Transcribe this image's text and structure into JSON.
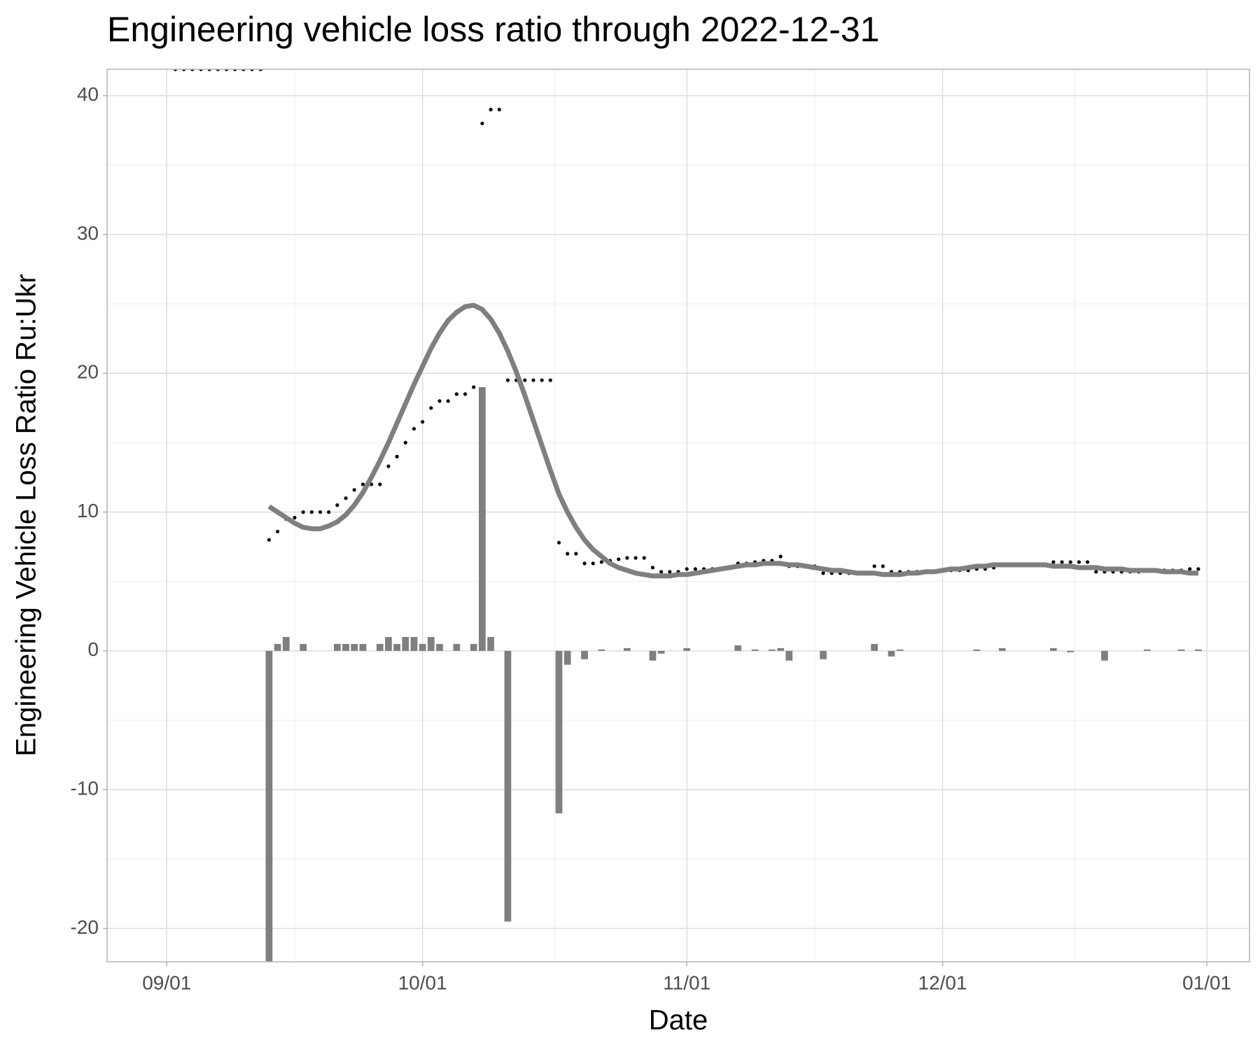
{
  "chart_data": {
    "type": "combo",
    "title": "Engineering vehicle loss ratio through 2022-12-31",
    "x_label": "Date",
    "y_label": "Engineering Vehicle Loss Ratio Ru:Ukr",
    "x": [
      "09/02",
      "09/03",
      "09/04",
      "09/05",
      "09/06",
      "09/07",
      "09/08",
      "09/09",
      "09/10",
      "09/11",
      "09/12",
      "09/13",
      "09/14",
      "09/15",
      "09/16",
      "09/17",
      "09/18",
      "09/19",
      "09/20",
      "09/21",
      "09/22",
      "09/23",
      "09/24",
      "09/25",
      "09/26",
      "09/27",
      "09/28",
      "09/29",
      "09/30",
      "10/01",
      "10/02",
      "10/03",
      "10/04",
      "10/05",
      "10/06",
      "10/07",
      "10/08",
      "10/09",
      "10/10",
      "10/11",
      "10/12",
      "10/13",
      "10/14",
      "10/15",
      "10/16",
      "10/17",
      "10/18",
      "10/19",
      "10/20",
      "10/21",
      "10/22",
      "10/23",
      "10/24",
      "10/25",
      "10/26",
      "10/27",
      "10/28",
      "10/29",
      "10/30",
      "10/31",
      "11/01",
      "11/02",
      "11/03",
      "11/04",
      "11/05",
      "11/06",
      "11/07",
      "11/08",
      "11/09",
      "11/10",
      "11/11",
      "11/12",
      "11/13",
      "11/14",
      "11/15",
      "11/16",
      "11/17",
      "11/18",
      "11/19",
      "11/20",
      "11/21",
      "11/22",
      "11/23",
      "11/24",
      "11/25",
      "11/26",
      "11/27",
      "11/28",
      "11/29",
      "11/30",
      "12/01",
      "12/02",
      "12/03",
      "12/04",
      "12/05",
      "12/06",
      "12/07",
      "12/08",
      "12/09",
      "12/10",
      "12/11",
      "12/12",
      "12/13",
      "12/14",
      "12/15",
      "12/16",
      "12/17",
      "12/18",
      "12/19",
      "12/20",
      "12/21",
      "12/22",
      "12/23",
      "12/24",
      "12/25",
      "12/26",
      "12/27",
      "12/28",
      "12/29",
      "12/30",
      "12/31"
    ],
    "series": [
      {
        "type": "bar",
        "color": "#7f7f7f",
        "values": [
          null,
          null,
          null,
          null,
          null,
          null,
          null,
          null,
          null,
          null,
          null,
          -22.4,
          0.5,
          1,
          0,
          0.5,
          0,
          0,
          0,
          0.5,
          0.5,
          0.5,
          0.5,
          0,
          0.5,
          1,
          0.5,
          1,
          1,
          0.5,
          1,
          0.5,
          0,
          0.5,
          0,
          0.5,
          19,
          1,
          0,
          -19.5,
          0,
          0,
          0,
          0,
          0,
          -11.7,
          -1,
          0,
          -0.6,
          0,
          0.1,
          0,
          0,
          0.2,
          0,
          0,
          -0.7,
          -0.2,
          0,
          0,
          0.2,
          0,
          0,
          0,
          0,
          0,
          0.4,
          0,
          0.1,
          0,
          0.1,
          0.2,
          -0.7,
          0,
          0,
          0,
          -0.6,
          0,
          0,
          0,
          0,
          0,
          0.5,
          0,
          -0.4,
          0.1,
          0,
          0,
          0,
          0,
          0,
          0,
          0,
          0,
          0.1,
          0,
          0,
          0.2,
          0,
          0,
          0,
          0,
          0,
          0.2,
          0,
          -0.1,
          0,
          0,
          0,
          -0.7,
          0,
          0,
          0,
          0,
          0.1,
          0,
          0,
          0,
          0.1,
          0,
          0.1
        ]
      },
      {
        "type": "scatter",
        "color": "#000000",
        "values": [
          41.9,
          41.9,
          41.9,
          41.9,
          41.9,
          41.9,
          41.9,
          41.9,
          41.9,
          41.9,
          41.9,
          8.0,
          8.6,
          9.5,
          9.6,
          10,
          10,
          10,
          10,
          10.5,
          11,
          11.6,
          12,
          12,
          12,
          13.3,
          14,
          15,
          16,
          16.5,
          17.5,
          18,
          18,
          18.5,
          18.5,
          19,
          38,
          39,
          39,
          19.5,
          19.5,
          19.5,
          19.5,
          19.5,
          19.5,
          7.8,
          7,
          7,
          6.3,
          6.3,
          6.4,
          6.5,
          6.6,
          6.7,
          6.7,
          6.7,
          6.0,
          5.7,
          5.7,
          5.7,
          5.9,
          5.9,
          5.9,
          5.9,
          5.9,
          6.0,
          6.3,
          6.3,
          6.4,
          6.5,
          6.5,
          6.8,
          6.1,
          6.1,
          6.1,
          6.1,
          5.6,
          5.6,
          5.6,
          5.6,
          5.6,
          5.6,
          6.1,
          6.1,
          5.7,
          5.7,
          5.7,
          5.7,
          5.7,
          5.7,
          5.8,
          5.8,
          5.8,
          5.8,
          5.9,
          5.9,
          6.0,
          6.2,
          6.2,
          6.2,
          6.2,
          6.2,
          6.2,
          6.4,
          6.4,
          6.4,
          6.4,
          6.4,
          5.7,
          5.7,
          5.7,
          5.7,
          5.7,
          5.7,
          5.8,
          5.8,
          5.8,
          5.8,
          5.8,
          5.9,
          5.9
        ]
      },
      {
        "type": "line",
        "color": "#7f7f7f",
        "values": [
          null,
          null,
          null,
          null,
          null,
          null,
          null,
          null,
          null,
          null,
          null,
          10.4,
          10.0,
          9.6,
          9.2,
          8.9,
          8.8,
          8.8,
          9.0,
          9.3,
          9.8,
          10.5,
          11.4,
          12.5,
          13.7,
          15.0,
          16.4,
          17.8,
          19.2,
          20.5,
          21.8,
          22.9,
          23.8,
          24.4,
          24.8,
          24.9,
          24.6,
          23.9,
          22.9,
          21.6,
          20.1,
          18.4,
          16.6,
          14.8,
          13.0,
          11.3,
          10.0,
          8.9,
          8.0,
          7.3,
          6.8,
          6.3,
          6.0,
          5.8,
          5.6,
          5.5,
          5.4,
          5.4,
          5.4,
          5.5,
          5.5,
          5.6,
          5.7,
          5.8,
          5.9,
          6.0,
          6.1,
          6.2,
          6.2,
          6.3,
          6.3,
          6.3,
          6.2,
          6.2,
          6.1,
          6.0,
          5.9,
          5.8,
          5.8,
          5.7,
          5.6,
          5.6,
          5.6,
          5.5,
          5.5,
          5.5,
          5.6,
          5.6,
          5.7,
          5.7,
          5.8,
          5.9,
          5.9,
          6.0,
          6.1,
          6.1,
          6.2,
          6.2,
          6.2,
          6.2,
          6.2,
          6.2,
          6.2,
          6.1,
          6.1,
          6.1,
          6.0,
          6.0,
          6.0,
          5.9,
          5.9,
          5.9,
          5.8,
          5.8,
          5.8,
          5.8,
          5.7,
          5.7,
          5.7,
          5.6,
          5.6
        ]
      }
    ],
    "xlim": [
      "08/25",
      "01/06"
    ],
    "xticks": [
      "09/01",
      "10/01",
      "11/01",
      "12/01",
      "01/01"
    ],
    "ylim": [
      -22.4,
      41.9
    ],
    "yticks": [
      -20,
      -10,
      0,
      10,
      20,
      30,
      40
    ],
    "grid": true
  }
}
